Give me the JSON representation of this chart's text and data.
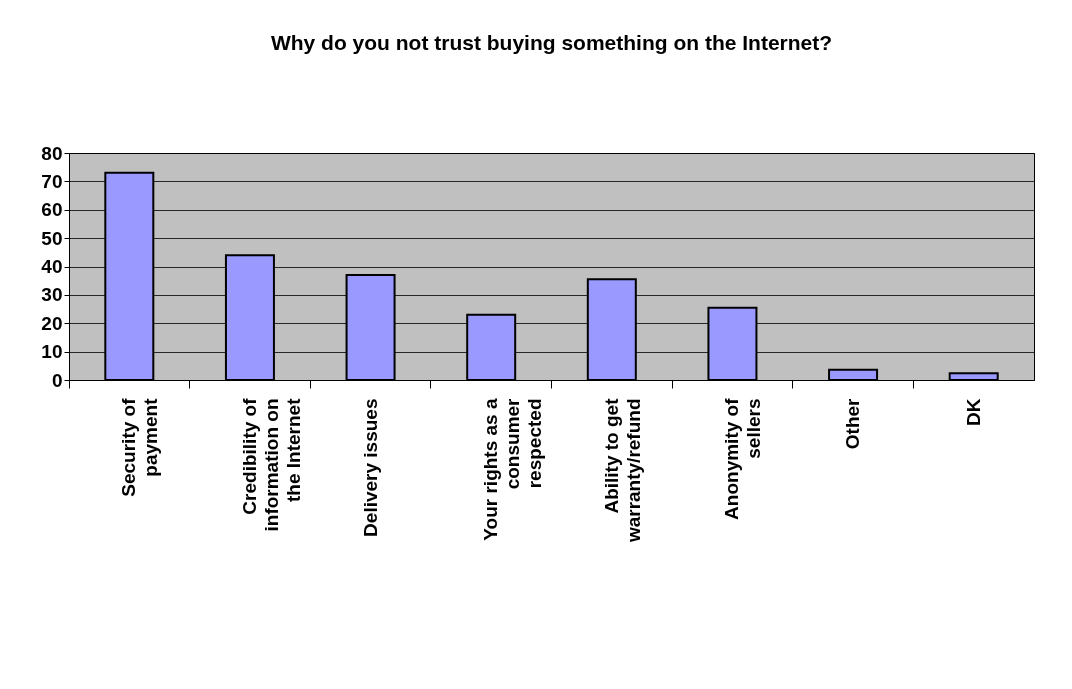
{
  "chart_data": {
    "type": "bar",
    "title": "Why do you not trust buying something on the Internet?",
    "categories": [
      "Security of payment",
      "Credibility of information on the Internet",
      "Delivery issues",
      "Your rights as a consumer respected",
      "Ability to get warranty/refund",
      "Anonymity of sellers",
      "Other",
      "DK"
    ],
    "values": [
      73,
      44,
      37,
      23,
      35.5,
      25.5,
      3.6,
      2.4
    ],
    "color": "#9999ff",
    "ylim": [
      0,
      80
    ],
    "yticks": [
      0,
      10,
      20,
      30,
      40,
      50,
      60,
      70,
      80
    ],
    "grid": "y"
  }
}
